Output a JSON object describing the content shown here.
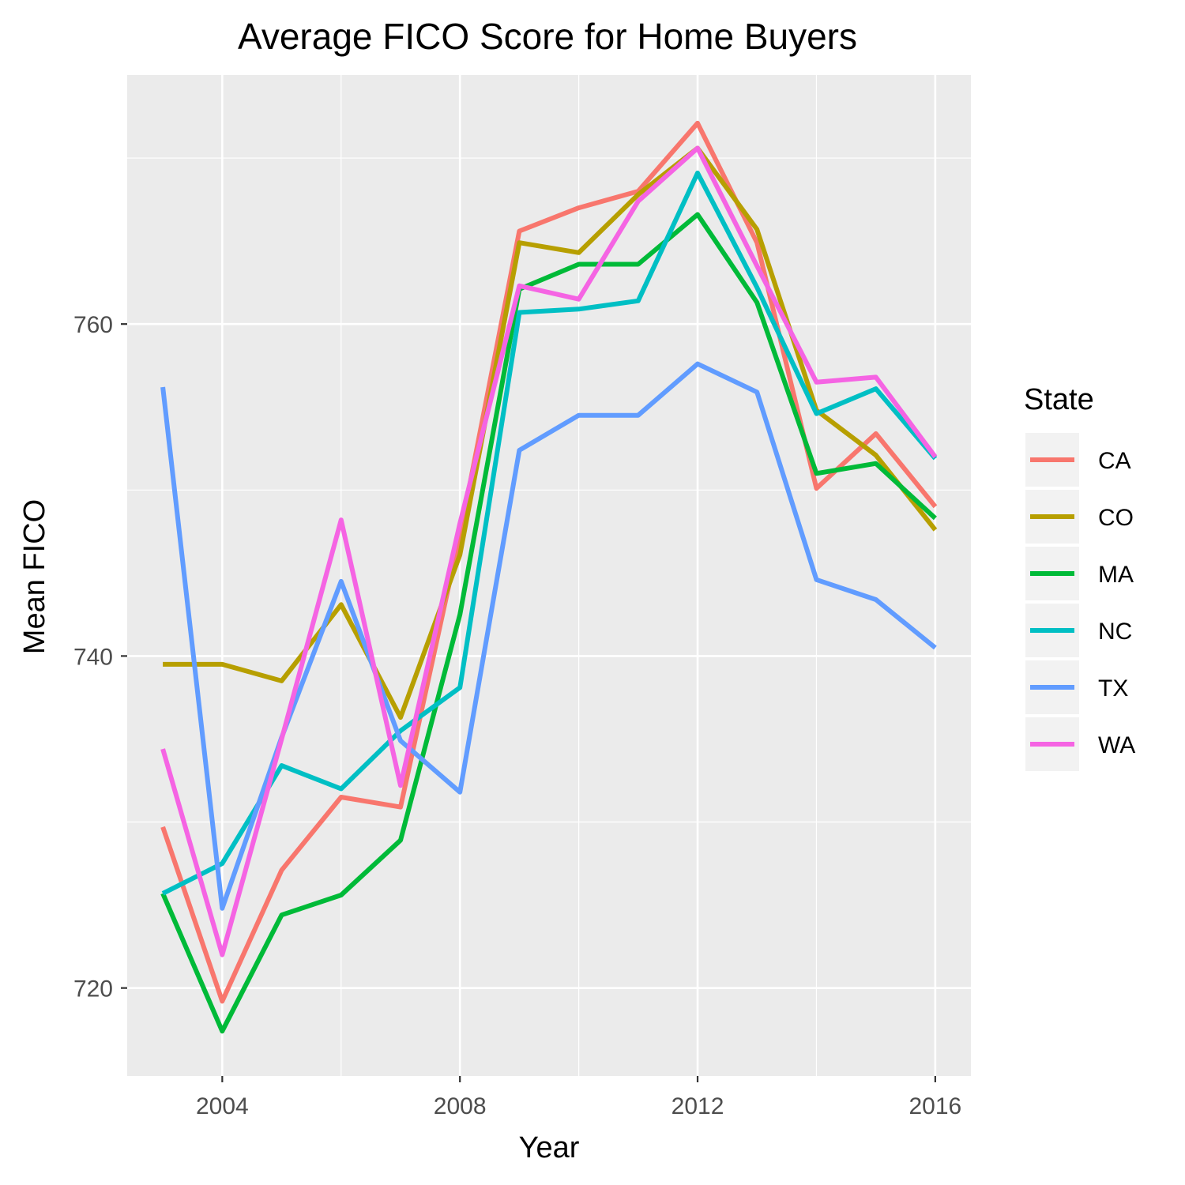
{
  "chart_data": {
    "type": "line",
    "title": "Average FICO Score for Home Buyers",
    "xlabel": "Year",
    "ylabel": "Mean FICO",
    "x": [
      2003,
      2004,
      2005,
      2006,
      2007,
      2008,
      2009,
      2010,
      2011,
      2012,
      2013,
      2014,
      2015,
      2016
    ],
    "xlim": [
      2002.4,
      2016.6
    ],
    "ylim": [
      714.7,
      775.0
    ],
    "x_ticks": [
      2004,
      2008,
      2012,
      2016
    ],
    "y_ticks": [
      720,
      740,
      760
    ],
    "grid": true,
    "legend": {
      "title": "State",
      "position": "right"
    },
    "series": [
      {
        "name": "CA",
        "color": "#F8766D",
        "values": [
          729.7,
          719.2,
          727.1,
          731.5,
          730.9,
          747.3,
          765.6,
          767.0,
          768.0,
          772.1,
          764.9,
          750.1,
          753.4,
          749.0
        ]
      },
      {
        "name": "CO",
        "color": "#B79F00",
        "values": [
          739.5,
          739.5,
          738.5,
          743.1,
          736.3,
          746.1,
          764.9,
          764.3,
          767.8,
          770.6,
          765.7,
          754.8,
          752.1,
          747.6
        ]
      },
      {
        "name": "MA",
        "color": "#00BA38",
        "values": [
          725.7,
          717.4,
          724.4,
          725.6,
          728.9,
          742.5,
          762.1,
          763.6,
          763.6,
          766.6,
          761.3,
          751.0,
          751.6,
          748.3
        ]
      },
      {
        "name": "NC",
        "color": "#00BFC4",
        "values": [
          725.7,
          727.5,
          733.4,
          732.0,
          735.5,
          738.1,
          760.7,
          760.9,
          761.4,
          769.1,
          762.2,
          754.6,
          756.1,
          751.9
        ]
      },
      {
        "name": "TX",
        "color": "#619CFF",
        "values": [
          756.2,
          724.8,
          735.1,
          744.5,
          734.9,
          731.8,
          752.4,
          754.5,
          754.5,
          757.6,
          755.9,
          744.6,
          743.4,
          740.5
        ]
      },
      {
        "name": "WA",
        "color": "#F564E3",
        "values": [
          734.4,
          722.0,
          735.0,
          748.2,
          732.2,
          748.0,
          762.3,
          761.5,
          767.4,
          770.6,
          763.5,
          756.5,
          756.8,
          752.0
        ]
      }
    ]
  }
}
